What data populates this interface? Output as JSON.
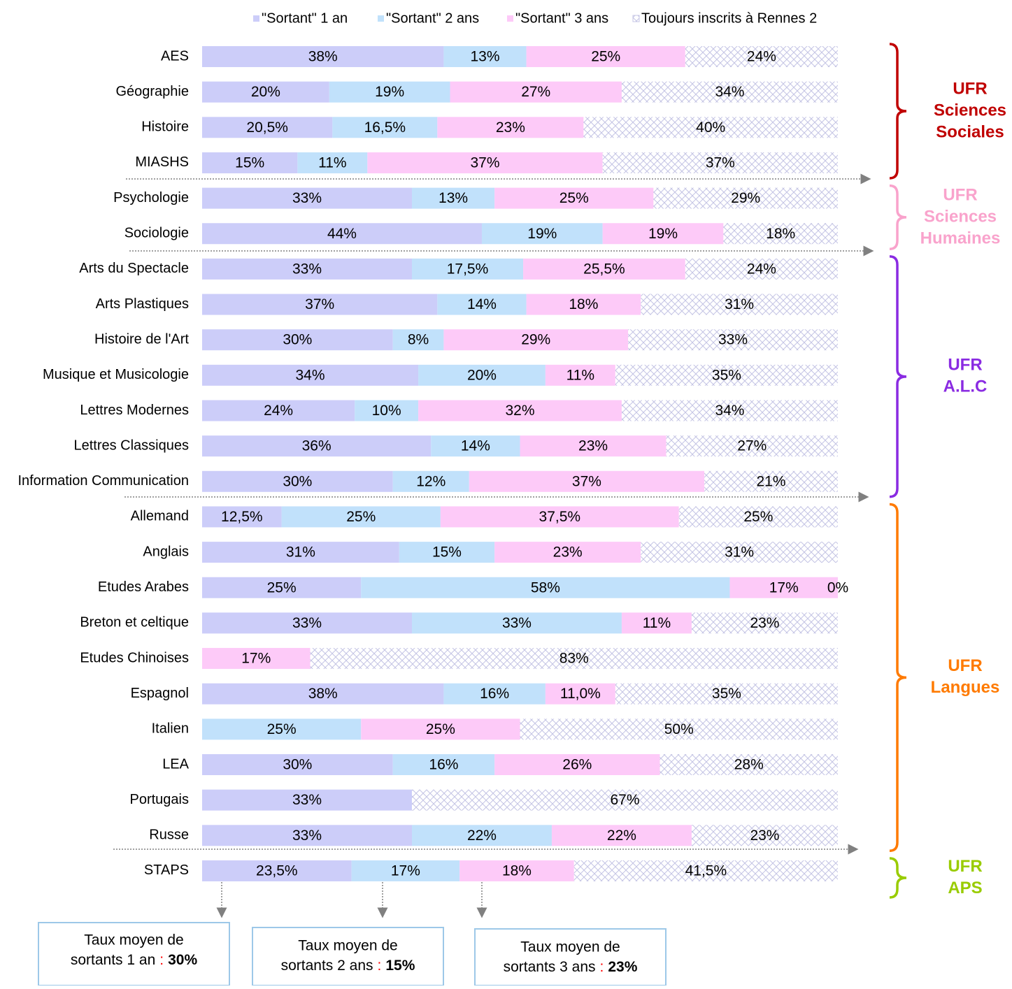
{
  "chart_data": {
    "type": "bar",
    "orientation": "horizontal",
    "stacked": true,
    "xlim": [
      0,
      100
    ],
    "legend": "top",
    "categories": [
      "AES",
      "Géographie",
      "Histoire",
      "MIASHS",
      "Psychologie",
      "Sociologie",
      "Arts du Spectacle",
      "Arts Plastiques",
      "Histoire de l'Art",
      "Musique et Musicologie",
      "Lettres Modernes",
      "Lettres Classiques",
      "Information Communication",
      "Allemand",
      "Anglais",
      "Etudes Arabes",
      "Breton et celtique",
      "Etudes Chinoises",
      "Espagnol",
      "Italien",
      "LEA",
      "Portugais",
      "Russe",
      "STAPS"
    ],
    "series": [
      {
        "name": "\"Sortant\" 1 an",
        "color": "#cccdf9",
        "values": [
          38,
          20,
          20.5,
          15,
          33,
          44,
          33,
          37,
          30,
          34,
          24,
          36,
          30,
          12.5,
          31,
          25,
          33,
          0,
          38,
          0,
          30,
          33,
          33,
          23.5
        ],
        "value_labels": [
          "38%",
          "20%",
          "20,5%",
          "15%",
          "33%",
          "44%",
          "33%",
          "37%",
          "30%",
          "34%",
          "24%",
          "36%",
          "30%",
          "12,5%",
          "31%",
          "25%",
          "33%",
          null,
          "38%",
          null,
          "30%",
          "33%",
          "33%",
          "23,5%"
        ]
      },
      {
        "name": "\"Sortant\" 2 ans",
        "color": "#c1e1fb",
        "values": [
          13,
          19,
          16.5,
          11,
          13,
          19,
          17.5,
          14,
          8,
          20,
          10,
          14,
          12,
          25,
          15,
          58,
          33,
          0,
          16,
          25,
          16,
          0,
          22,
          17
        ],
        "value_labels": [
          "13%",
          "19%",
          "16,5%",
          "11%",
          "13%",
          "19%",
          "17,5%",
          "14%",
          "8%",
          "20%",
          "10%",
          "14%",
          "12%",
          "25%",
          "15%",
          "58%",
          "33%",
          null,
          "16%",
          "25%",
          "16%",
          null,
          "22%",
          "17%"
        ]
      },
      {
        "name": "\"Sortant\" 3 ans",
        "color": "#fdcaf8",
        "values": [
          25,
          27,
          23,
          37,
          25,
          19,
          25.5,
          18,
          29,
          11,
          32,
          23,
          37,
          37.5,
          23,
          17,
          11,
          17,
          11,
          25,
          26,
          0,
          22,
          18
        ],
        "value_labels": [
          "25%",
          "27%",
          "23%",
          "37%",
          "25%",
          "19%",
          "25,5%",
          "18%",
          "29%",
          "11%",
          "32%",
          "23%",
          "37%",
          "37,5%",
          "23%",
          "17%",
          "11%",
          "17%",
          "11,0%",
          "25%",
          "26%",
          null,
          "22%",
          "18%"
        ]
      },
      {
        "name": "Toujours inscrits à Rennes 2",
        "color": "hatch",
        "values": [
          24,
          34,
          40,
          37,
          29,
          18,
          24,
          31,
          33,
          35,
          34,
          27,
          21,
          25,
          31,
          0,
          23,
          83,
          35,
          50,
          28,
          67,
          23,
          41.5
        ],
        "value_labels": [
          "24%",
          "34%",
          "40%",
          "37%",
          "29%",
          "18%",
          "24%",
          "31%",
          "33%",
          "35%",
          "34%",
          "27%",
          "21%",
          "25%",
          "31%",
          "0%",
          "23%",
          "83%",
          "35%",
          "50%",
          "28%",
          "67%",
          "23%",
          "41,5%"
        ]
      }
    ],
    "groups": [
      {
        "label": [
          "UFR",
          "Sciences",
          "Sociales"
        ],
        "color": "#c00000"
      },
      {
        "label": [
          "UFR",
          "Sciences",
          "Humaines"
        ],
        "color": "#f9a3cc"
      },
      {
        "label": [
          "UFR",
          "A.L.C"
        ],
        "color": "#8a2be2"
      },
      {
        "label": [
          "UFR",
          "Langues"
        ],
        "color": "#ff7a00"
      },
      {
        "label": [
          "UFR",
          "APS"
        ],
        "color": "#99cc00"
      }
    ],
    "annotations": [
      {
        "line1": "Taux moyen de",
        "line2": "sortants 1 an",
        "separator": ":",
        "value": "30%"
      },
      {
        "line1": "Taux moyen de",
        "line2": "sortants 2 ans",
        "separator": ":",
        "value": "15%"
      },
      {
        "line1": "Taux moyen de",
        "line2": "sortants 3 ans",
        "separator": ":",
        "value": "23%"
      }
    ]
  }
}
